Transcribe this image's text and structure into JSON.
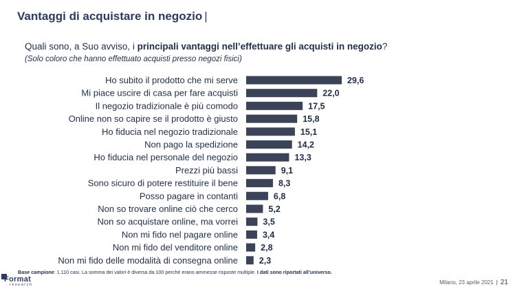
{
  "header": {
    "title": "Vantaggi di acquistare in negozio",
    "title_cursor": "|",
    "question_pre": "Quali sono, a Suo avviso, i ",
    "question_bold": "principali vantaggi nell’effettuare gli acquisti in negozio",
    "question_post": "?",
    "subnote": "(Solo coloro che hanno effettuato acquisti presso negozi fisici)"
  },
  "chart_data": {
    "type": "bar",
    "orientation": "horizontal",
    "categories": [
      "Ho subito il prodotto che mi serve",
      "Mi piace uscire di casa per fare acquisti",
      "Il negozio tradizionale è più comodo",
      "Online non so capire se il prodotto è giusto",
      "Ho fiducia nel negozio tradizionale",
      "Non pago la spedizione",
      "Ho fiducia nel personale del negozio",
      "Prezzi più bassi",
      "Sono sicuro di potere restituire il bene",
      "Posso pagare in contanti",
      "Non so trovare online ciò che cerco",
      "Non so acquistare online, ma vorrei",
      "Non mi fido nel pagare online",
      "Non mi fido del venditore online",
      "Non mi fido delle modalità di consegna online"
    ],
    "values": [
      29.6,
      22.0,
      17.5,
      15.8,
      15.1,
      14.2,
      13.3,
      9.1,
      8.3,
      6.8,
      5.2,
      3.5,
      3.4,
      2.8,
      2.3
    ],
    "value_labels": [
      "29,6",
      "22,0",
      "17,5",
      "15,8",
      "15,1",
      "14,2",
      "13,3",
      "9,1",
      "8,3",
      "6,8",
      "5,2",
      "3,5",
      "3,4",
      "2,8",
      "2,3"
    ],
    "bar_color": "#3b4358",
    "grid": false,
    "legend": "none"
  },
  "footer": {
    "base_label": "Base campione",
    "base_text": ": 1.110 casi. La somma dei valori è diversa da 100 perché erano ammesse risposte multiple. ",
    "base_bold": "I dati sono riportati all’universo.",
    "logo_word": "Format",
    "logo_sub": "research",
    "place_date": "Milano, 23 aprile 2021",
    "separator": "|",
    "page_number": "21"
  },
  "colors": {
    "title": "#2b3a67",
    "text": "#1f2d4d",
    "bar": "#3b4358"
  }
}
